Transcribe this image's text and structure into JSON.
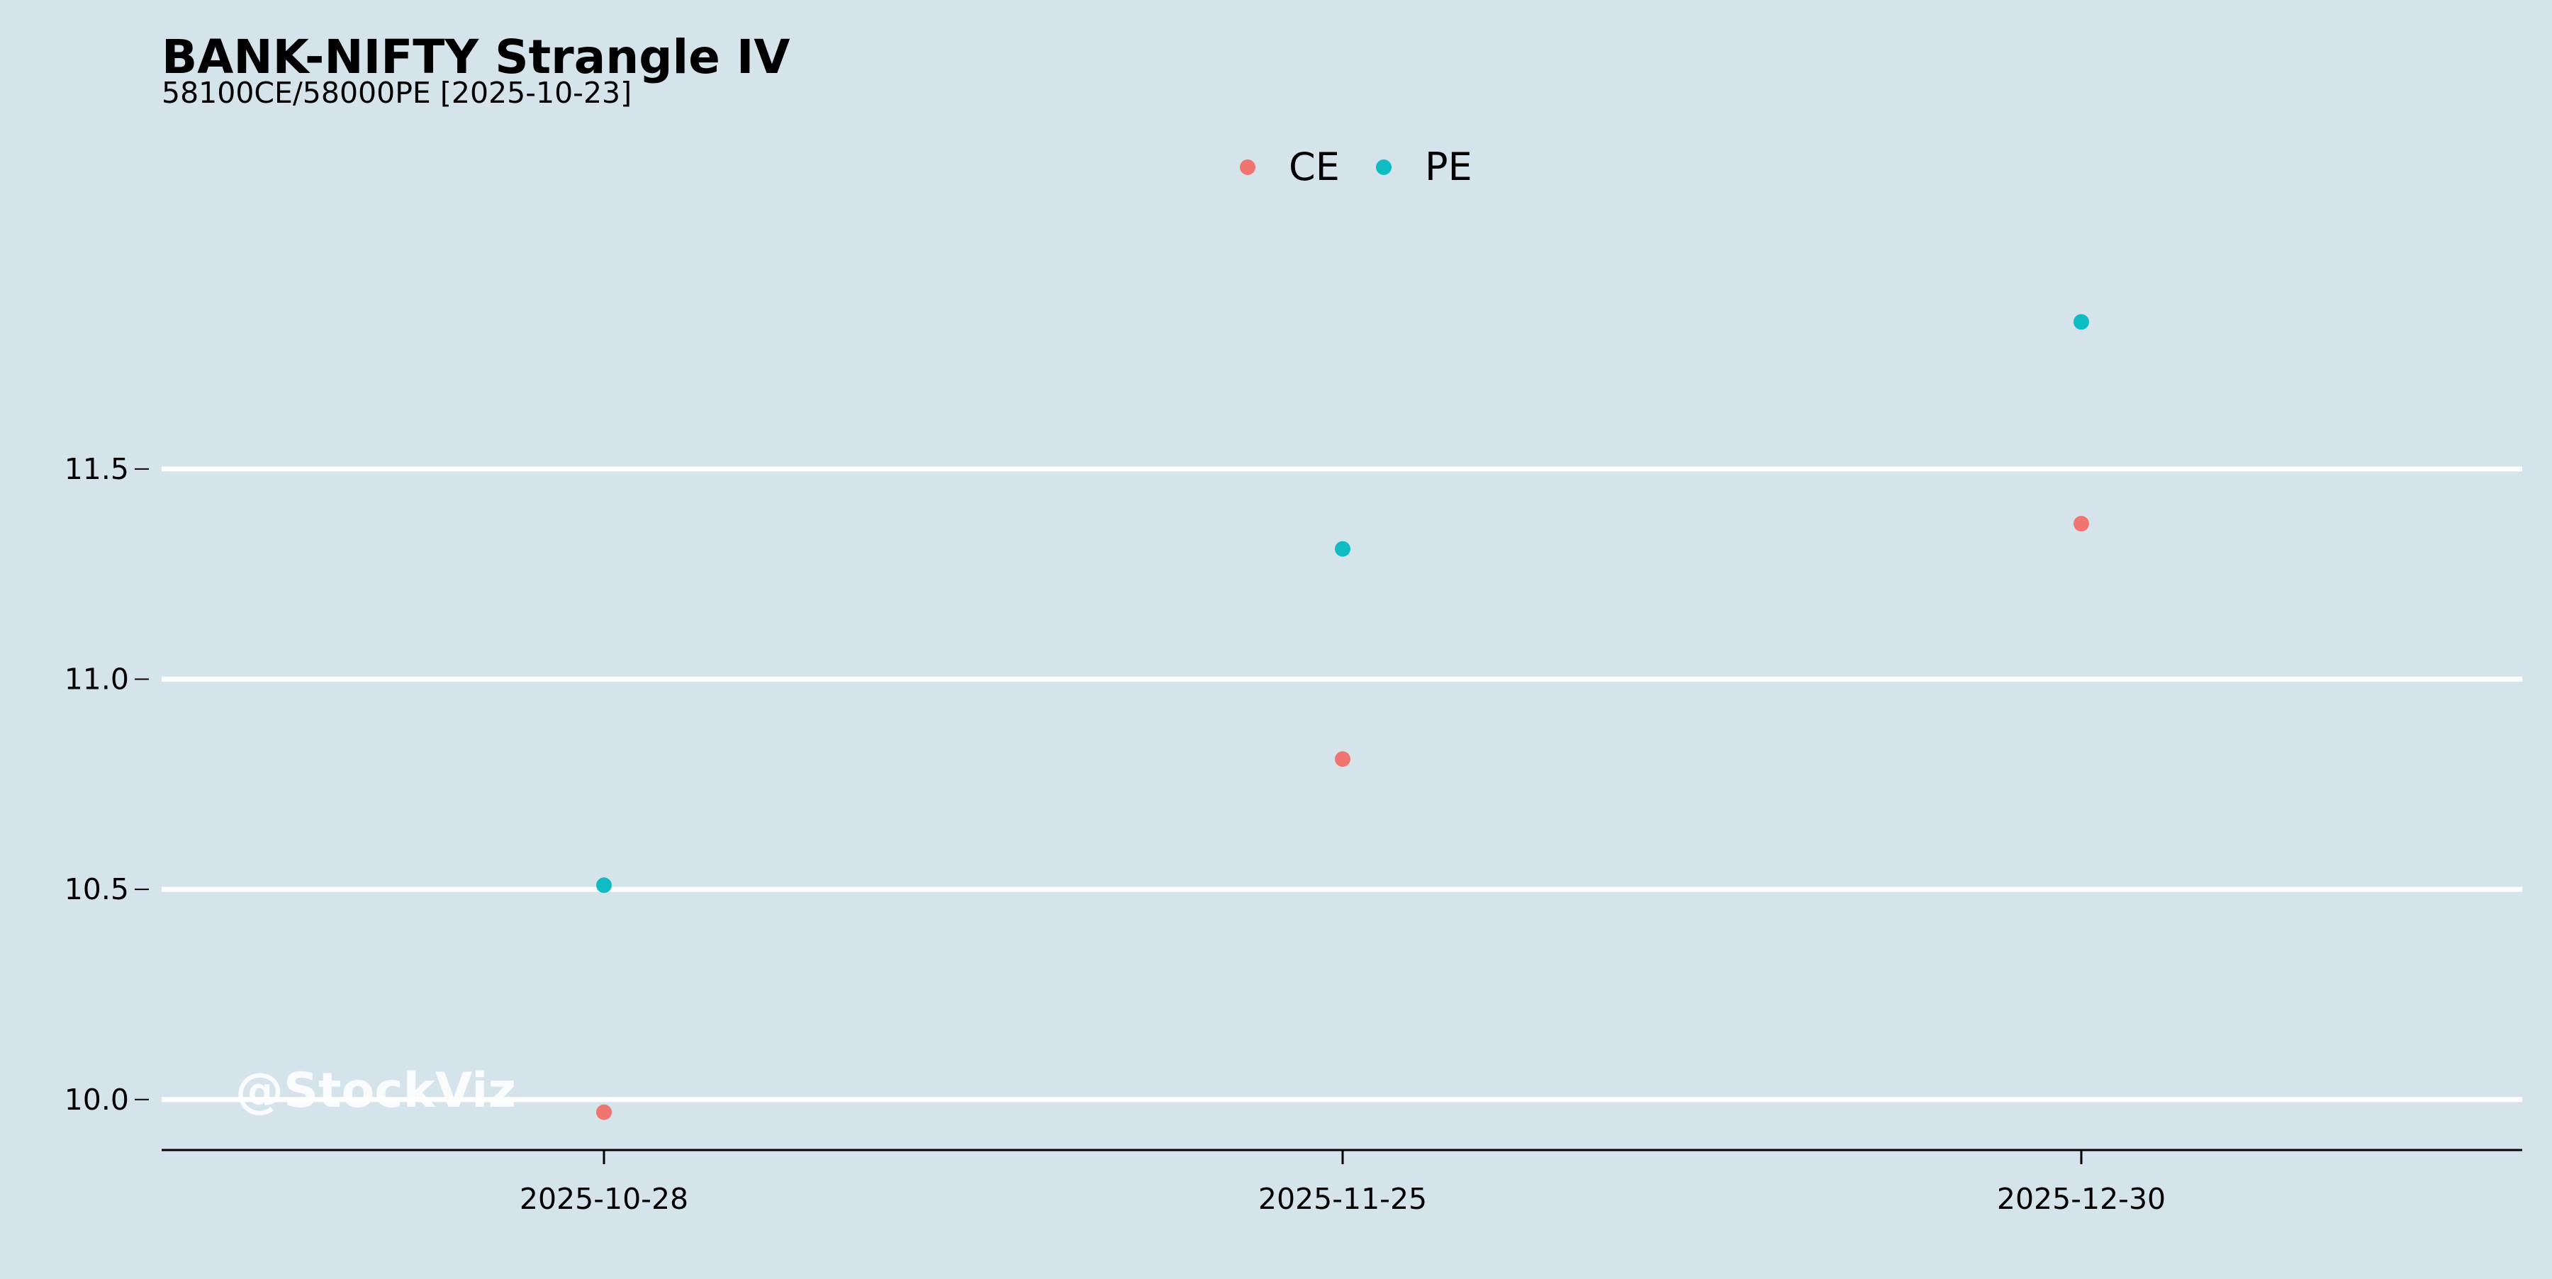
{
  "chart_data": {
    "type": "scatter",
    "title": "BANK-NIFTY Strangle IV",
    "subtitle": "58100CE/58000PE [2025-10-23]",
    "xlabel": "",
    "ylabel": "",
    "categories": [
      "2025-10-28",
      "2025-11-25",
      "2025-12-30"
    ],
    "y_ticks": [
      "10.0",
      "10.5",
      "11.0",
      "11.5"
    ],
    "ylim": [
      9.88,
      12.4
    ],
    "grid": "horizontal",
    "legend_position": "top-center",
    "series": [
      {
        "name": "CE",
        "color": "#f07470",
        "values": [
          9.97,
          10.81,
          11.37
        ]
      },
      {
        "name": "PE",
        "color": "#10bcc4",
        "values": [
          10.51,
          11.31,
          11.85
        ]
      }
    ],
    "watermark": "@StockViz",
    "background_color": "#d5e4eb"
  }
}
